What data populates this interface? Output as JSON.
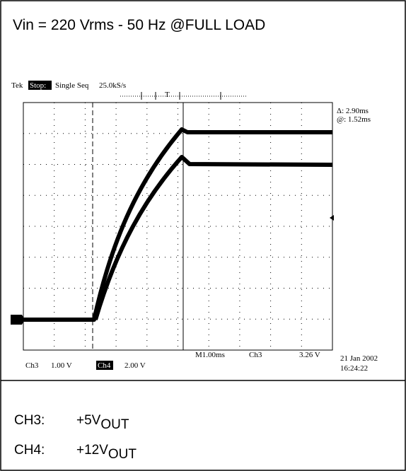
{
  "header": {
    "title": "Vin = 220 Vrms - 50 Hz  @FULL LOAD"
  },
  "scope": {
    "brand": "Tek",
    "status": "Stop:",
    "mode": "Single Seq",
    "sample_rate": "25.0kS/s",
    "cursor_delta": "Δ: 2.90ms",
    "cursor_position": "@: 1.52ms",
    "ch3_label": "Ch3",
    "ch3_scale": "1.00 V",
    "ch4_label": "Ch4",
    "ch4_scale": "2.00 V",
    "timebase": "M1.00ms",
    "trigger_source": "Ch3",
    "trigger_level": "3.26 V",
    "date": "21 Jan 2002",
    "time": "16:24:22"
  },
  "legend": [
    {
      "channel": "CH3:",
      "signal": "+5V",
      "subscript": "OUT"
    },
    {
      "channel": "CH4:",
      "signal": "+12V",
      "subscript": "OUT"
    }
  ]
}
